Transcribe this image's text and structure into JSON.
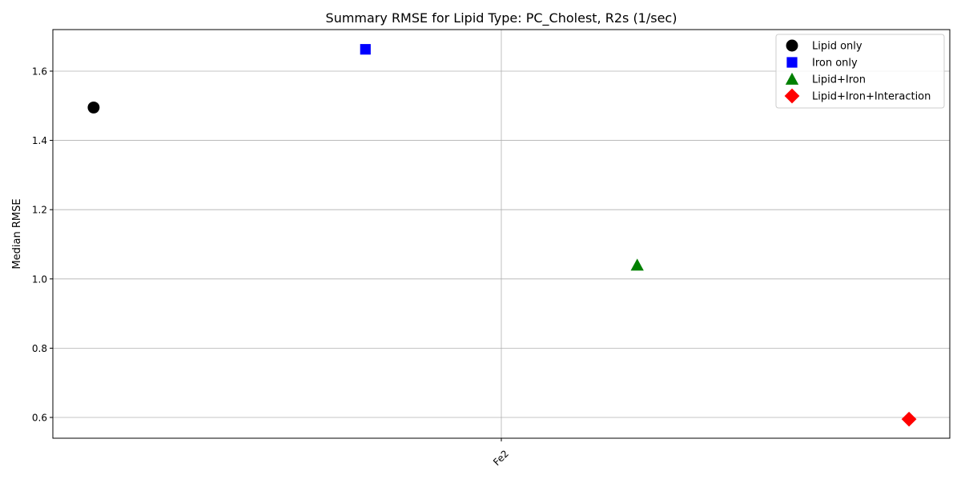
{
  "chart_data": {
    "type": "scatter",
    "title": "Summary RMSE for Lipid Type: PC_Cholest, R2s (1/sec)",
    "xlabel": "",
    "ylabel": "Median RMSE",
    "x_tick_labels": [
      "Fe2"
    ],
    "x_tick_rotation": 45,
    "ylim": [
      0.54,
      1.72
    ],
    "y_ticks": [
      0.6,
      0.8,
      1.0,
      1.2,
      1.4,
      1.6
    ],
    "y_tick_labels": [
      "0.6",
      "0.8",
      "1.0",
      "1.2",
      "1.4",
      "1.6"
    ],
    "grid": true,
    "legend_position": "upper right",
    "series": [
      {
        "name": "Lipid only",
        "marker": "circle",
        "color": "#000000",
        "x": 0,
        "y": 1.495
      },
      {
        "name": "Iron only",
        "marker": "square",
        "color": "#0000ff",
        "x": 1,
        "y": 1.663
      },
      {
        "name": "Lipid+Iron",
        "marker": "triangle",
        "color": "#008000",
        "x": 2,
        "y": 1.04
      },
      {
        "name": "Lipid+Iron+Interaction",
        "marker": "diamond",
        "color": "#ff0000",
        "x": 3,
        "y": 0.595
      }
    ]
  }
}
